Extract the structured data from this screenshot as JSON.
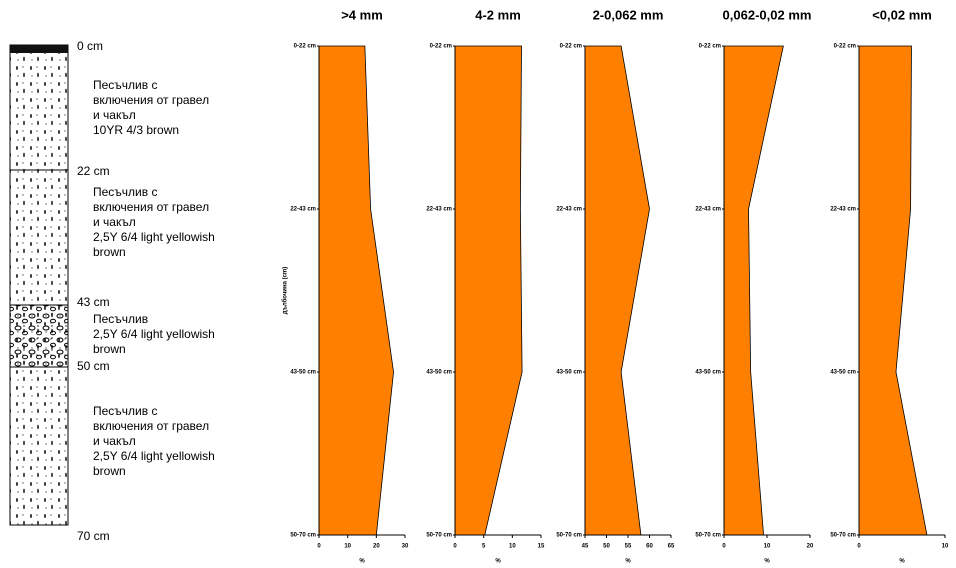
{
  "profile": {
    "depths": [
      "0 cm",
      "22 cm",
      "43 cm",
      "50 cm",
      "70 cm"
    ],
    "layers": [
      [
        "Песъчлив с",
        "включения от гравел",
        "и чакъл",
        "10YR 4/3 brown"
      ],
      [
        "Песъчлив с",
        "включения от гравел",
        "и чакъл",
        "2,5Y 6/4 light yellowish",
        "brown"
      ],
      [
        "Песъчлив",
        "2,5Y 6/4 light yellowish",
        "brown"
      ],
      [
        "Песъчлив с",
        "включения от гравел",
        "и чакъл",
        "2,5Y 6/4 light yellowish",
        "brown"
      ]
    ]
  },
  "chart_data": [
    {
      "type": "area",
      "title": ">4 mm",
      "y_label": "дълбочина (cm)",
      "x_label": "%",
      "color": "#ff8000",
      "categories": [
        "0-22 cm",
        "22-43 cm",
        "43-50 cm",
        "50-70 cm"
      ],
      "values": [
        16,
        18,
        26,
        20
      ],
      "xlim": [
        0,
        30
      ],
      "xticks": [
        0,
        10,
        20,
        30
      ]
    },
    {
      "type": "area",
      "title": "4-2 mm",
      "x_label": "%",
      "color": "#ff8000",
      "categories": [
        "0-22 cm",
        "22-43 cm",
        "43-50 cm",
        "50-70 cm"
      ],
      "values": [
        11.6,
        11.4,
        11.7,
        5.2
      ],
      "xlim": [
        0,
        15
      ],
      "xticks": [
        0,
        5,
        10,
        15
      ]
    },
    {
      "type": "area",
      "title": "2-0,062 mm",
      "x_label": "%",
      "color": "#ff8000",
      "categories": [
        "0-22 cm",
        "22-43 cm",
        "43-50 cm",
        "50-70 cm"
      ],
      "values": [
        53.4,
        60,
        53.4,
        58
      ],
      "xlim": [
        45,
        65
      ],
      "xticks": [
        45,
        50,
        55,
        60,
        65
      ]
    },
    {
      "type": "area",
      "title": "0,062-0,02 mm",
      "x_label": "%",
      "color": "#ff8000",
      "categories": [
        "0-22 cm",
        "22-43 cm",
        "43-50 cm",
        "50-70 cm"
      ],
      "values": [
        13.8,
        5.7,
        6.2,
        9.2
      ],
      "xlim": [
        0,
        20
      ],
      "xticks": [
        0,
        10,
        20
      ]
    },
    {
      "type": "area",
      "title": "<0,02 mm",
      "x_label": "%",
      "color": "#ff8000",
      "categories": [
        "0-22 cm",
        "22-43 cm",
        "43-50 cm",
        "50-70 cm"
      ],
      "values": [
        6.1,
        6,
        4.3,
        7.9
      ],
      "xlim": [
        0,
        10
      ],
      "xticks": [
        0,
        10
      ]
    }
  ]
}
